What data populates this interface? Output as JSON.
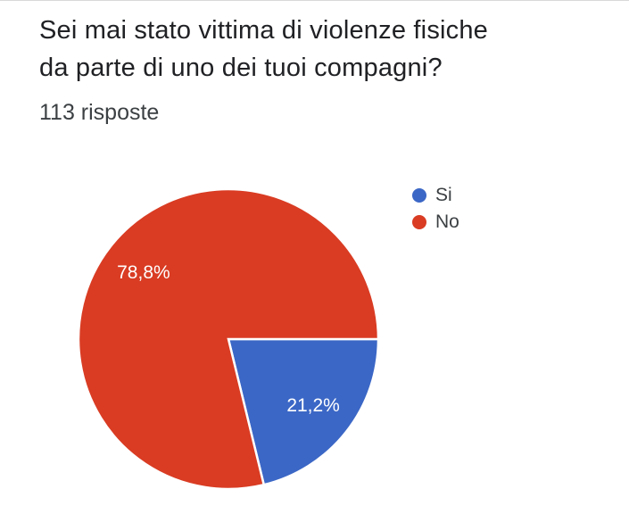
{
  "header": {
    "title": "Sei mai stato vittima di violenze fisiche da parte di uno dei tuoi compagni?",
    "responses_count": "113 risposte"
  },
  "chart_data": {
    "type": "pie",
    "title": "Sei mai stato vittima di violenze fisiche da parte di uno dei tuoi compagni?",
    "subtitle": "113 risposte",
    "categories": [
      "Si",
      "No"
    ],
    "values": [
      21.2,
      78.8
    ],
    "slice_labels": [
      "21,2%",
      "78,8%"
    ],
    "colors": [
      "#3b67c6",
      "#d93c23"
    ],
    "start_angle_deg": 0,
    "direction": "clockwise",
    "legend_position": "right-top",
    "slice_label_color": "#ffffff",
    "slice_border_color": "#ffffff"
  },
  "legend": {
    "items": [
      {
        "label": "Si",
        "color": "#3b67c6"
      },
      {
        "label": "No",
        "color": "#d93c23"
      }
    ]
  },
  "style": {
    "background": "#ffffff",
    "top_border": "#d8d8d8",
    "title_color": "#202124",
    "subtitle_color": "#3c4043",
    "legend_text_color": "#3c4043"
  }
}
